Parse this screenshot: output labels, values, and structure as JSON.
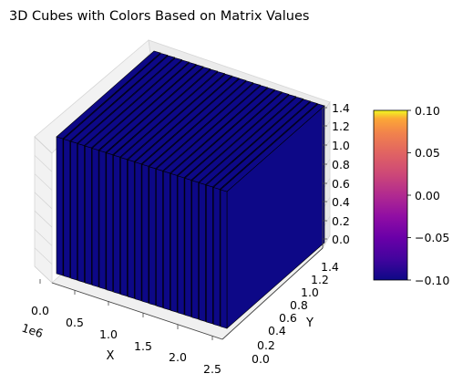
{
  "chart_data": {
    "type": "3d-bar",
    "title": "3D Cubes with Colors Based on Matrix Values",
    "x_axis": {
      "label": "X",
      "ticks": [
        "0.0",
        "0.5",
        "1.0",
        "1.5",
        "2.0",
        "2.5"
      ],
      "offset_label": "1e6",
      "range": [
        0,
        2.5
      ]
    },
    "y_axis": {
      "label": "Y",
      "ticks": [
        "0.0",
        "0.2",
        "0.4",
        "0.6",
        "0.8",
        "1.0",
        "1.2",
        "1.4"
      ],
      "range": [
        0,
        1.4
      ]
    },
    "z_axis": {
      "label": "",
      "ticks": [
        "0.0",
        "0.2",
        "0.4",
        "0.6",
        "0.8",
        "1.0",
        "1.2",
        "1.4"
      ],
      "range": [
        0,
        1.4
      ]
    },
    "colorbar": {
      "colormap": "plasma",
      "ticks": [
        "0.10",
        "0.05",
        "0.00",
        "−0.05",
        "−0.10"
      ],
      "range": [
        -0.1,
        0.1
      ]
    },
    "cube_color": "#0d0887",
    "cube_value": 0,
    "grid": true
  }
}
